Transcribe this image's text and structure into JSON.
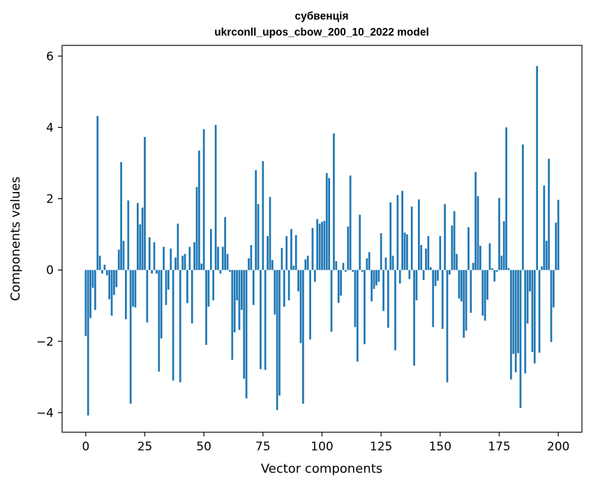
{
  "chart_data": {
    "type": "bar",
    "title_line1": "субвенція",
    "title_line2": "ukrconll_upos_cbow_200_10_2022 model",
    "xlabel": "Vector components",
    "ylabel": "Components values",
    "bar_color": "#1f77b4",
    "grid": false,
    "xlim": [
      -10,
      210
    ],
    "ylim": [
      -4.55,
      6.3
    ],
    "x_ticks": [
      0,
      25,
      50,
      75,
      100,
      125,
      150,
      175,
      200
    ],
    "y_ticks": [
      -4,
      -2,
      0,
      2,
      4,
      6
    ],
    "y_tick_labels": [
      "−4",
      "−2",
      "0",
      "2",
      "4",
      "6"
    ],
    "values": [
      -1.85,
      -4.08,
      -1.35,
      -0.5,
      -1.12,
      4.32,
      0.4,
      -0.1,
      0.15,
      -0.15,
      -0.82,
      -1.28,
      -0.7,
      -0.48,
      0.57,
      3.03,
      0.82,
      -1.38,
      1.95,
      -3.75,
      -1.03,
      -1.05,
      1.88,
      1.28,
      1.75,
      3.73,
      -1.47,
      0.92,
      -0.1,
      0.78,
      -0.1,
      -2.85,
      -1.92,
      0.65,
      -0.98,
      -0.55,
      0.6,
      -3.1,
      0.35,
      1.3,
      -3.15,
      0.4,
      0.45,
      -0.93,
      0.65,
      -1.5,
      0.78,
      2.33,
      3.35,
      0.18,
      3.95,
      -2.1,
      -1.03,
      1.15,
      -0.85,
      4.07,
      0.65,
      -0.1,
      0.65,
      1.48,
      0.45,
      -0.05,
      -2.52,
      -1.75,
      -0.85,
      -1.68,
      -1.12,
      -3.05,
      -3.6,
      0.33,
      0.7,
      -0.98,
      2.8,
      1.85,
      -2.78,
      3.05,
      -2.8,
      0.95,
      2.05,
      0.28,
      -1.25,
      -3.93,
      -3.52,
      0.62,
      -1.03,
      0.95,
      -0.85,
      1.15,
      0.12,
      0.98,
      -0.6,
      -2.05,
      -3.75,
      0.3,
      0.4,
      -1.95,
      1.18,
      -0.33,
      1.43,
      1.3,
      1.35,
      1.38,
      2.72,
      2.58,
      -1.73,
      3.83,
      0.25,
      -0.92,
      -0.72,
      0.2,
      -0.05,
      1.22,
      2.65,
      -0.05,
      -1.6,
      -2.57,
      1.55,
      -0.05,
      -2.08,
      0.33,
      0.5,
      -0.88,
      -0.53,
      -0.43,
      -0.33,
      1.03,
      -1.15,
      0.35,
      -1.62,
      1.9,
      0.4,
      -2.25,
      2.1,
      -0.38,
      2.22,
      1.05,
      1.0,
      -0.25,
      1.78,
      -2.68,
      -0.85,
      1.98,
      0.7,
      -0.28,
      0.6,
      0.95,
      0.08,
      -1.6,
      -0.45,
      -0.3,
      0.95,
      -1.65,
      1.85,
      -3.15,
      -0.13,
      1.25,
      1.65,
      0.45,
      -0.8,
      -0.88,
      -1.9,
      -1.7,
      1.2,
      -1.2,
      0.2,
      2.75,
      2.07,
      0.68,
      -1.28,
      -1.42,
      -0.83,
      0.75,
      0.05,
      -0.32,
      -0.05,
      2.02,
      0.4,
      1.37,
      4.0,
      0.05,
      -3.07,
      -2.35,
      -2.87,
      -2.33,
      -3.87,
      3.52,
      -2.9,
      -1.5,
      -0.6,
      -2.3,
      -2.62,
      5.72,
      -2.32,
      0.1,
      2.37,
      0.82,
      3.12,
      -2.02,
      -1.05,
      1.33,
      1.97
    ]
  }
}
